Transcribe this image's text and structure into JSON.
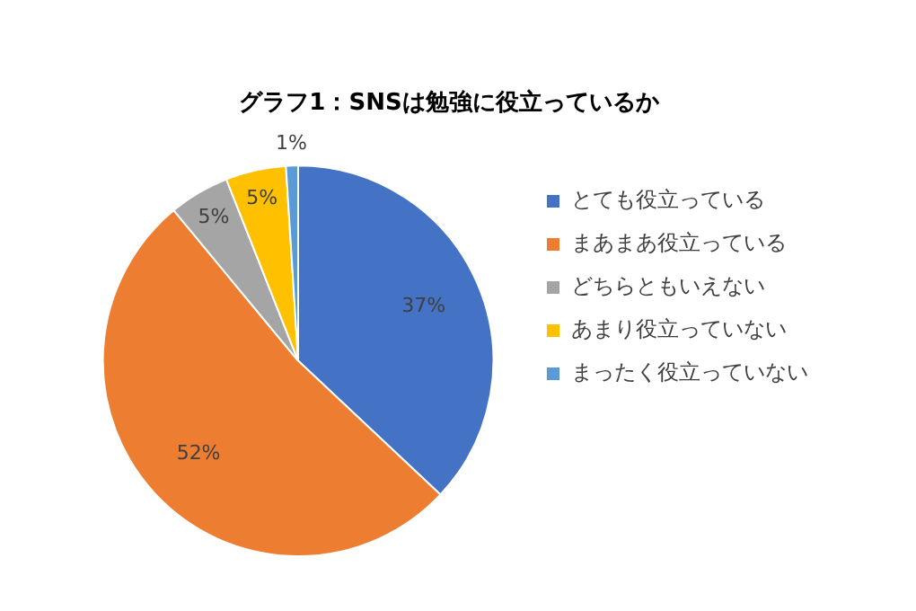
{
  "chart_data": {
    "type": "pie",
    "title": "グラフ1：SNSは勉強に役立っているか",
    "categories": [
      "とても役立っている",
      "まあまあ役立っている",
      "どちらともいえない",
      "あまり役立っていない",
      "まったく役立っていない"
    ],
    "values": [
      37,
      52,
      5,
      5,
      1
    ],
    "colors": [
      "#4472c4",
      "#ed7d31",
      "#a5a5a5",
      "#ffc000",
      "#5b9bd5"
    ],
    "value_labels": [
      "37%",
      "52%",
      "5%",
      "5%",
      "1%"
    ],
    "legend": "right"
  }
}
